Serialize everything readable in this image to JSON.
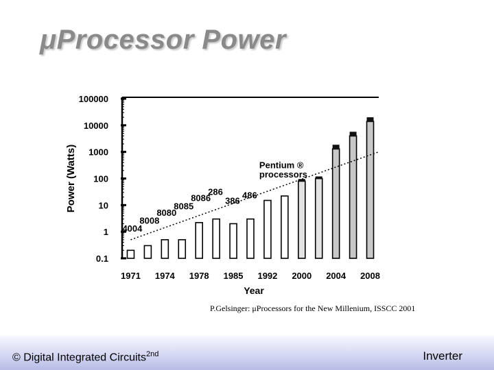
{
  "slide": {
    "title": "μProcessor Power",
    "citation": "P.Gelsinger: μProcessors for the New Millenium, ISSCC 2001",
    "footer_left_main": "© Digital Integrated Circuits",
    "footer_left_sup": "2nd",
    "footer_right": "Inverter"
  },
  "chart_data": {
    "type": "bar",
    "title": "",
    "xlabel": "Year",
    "ylabel": "Power (Watts)",
    "yscale": "log",
    "ylim": [
      0.1,
      100000
    ],
    "yticks": [
      "100000",
      "10000",
      "1000",
      "100",
      "10",
      "1",
      "0.1"
    ],
    "ytick_values": [
      100000,
      10000,
      1000,
      100,
      10,
      1,
      0.1
    ],
    "xtick_labels": [
      "1971",
      "1974",
      "1978",
      "1985",
      "1992",
      "2000",
      "2004",
      "2008"
    ],
    "grid": false,
    "values": [
      0.2,
      0.3,
      0.5,
      0.5,
      2.2,
      3,
      2,
      3,
      15,
      22,
      80,
      100,
      1300,
      4000,
      14000
    ],
    "annotations": [
      {
        "text": "4004",
        "x_index": 0,
        "y": 1
      },
      {
        "text": "8008",
        "x_index": 1,
        "y": 2
      },
      {
        "text": "8080",
        "x_index": 2,
        "y": 4
      },
      {
        "text": "8085",
        "x_index": 3,
        "y": 7
      },
      {
        "text": "8086",
        "x_index": 4,
        "y": 14
      },
      {
        "text": "286",
        "x_index": 5,
        "y": 24
      },
      {
        "text": "386",
        "x_index": 6,
        "y": 11
      },
      {
        "text": "486",
        "x_index": 7,
        "y": 18
      },
      {
        "text": "Pentium ®",
        "x_index": 8,
        "y": 240
      },
      {
        "text": "processors",
        "x_index": 8,
        "y": 110
      }
    ],
    "trend_line": {
      "from": [
        0,
        0.5
      ],
      "to": [
        14,
        1000
      ]
    }
  }
}
